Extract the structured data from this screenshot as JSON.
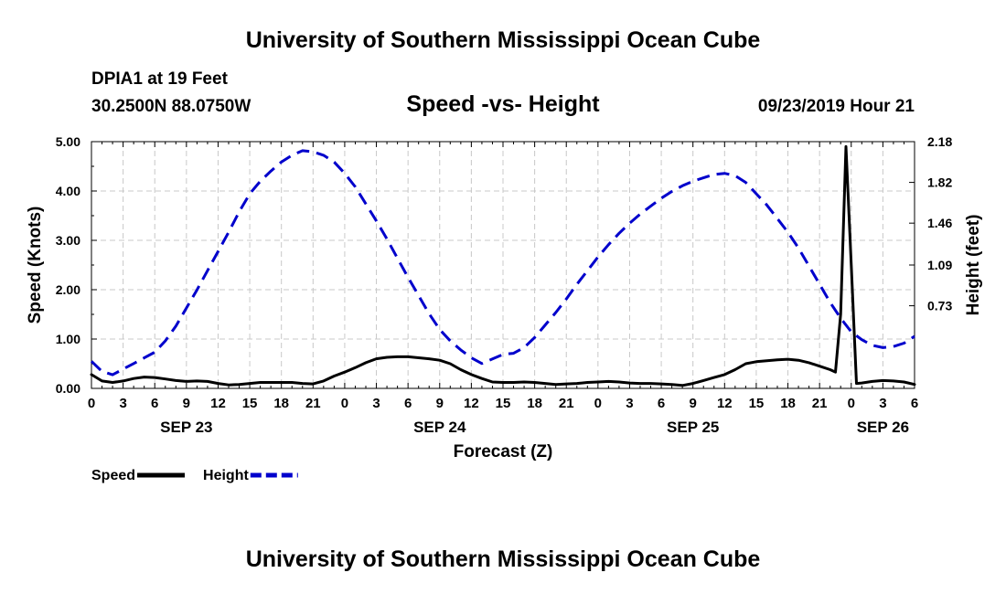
{
  "title": "University of Southern Mississippi Ocean Cube",
  "footer_title": "University of Southern Mississippi Ocean Cube",
  "station": "DPIA1 at 19 Feet",
  "coordinates": "30.2500N 88.0750W",
  "subtitle": "Speed -vs- Height",
  "datetime": "09/23/2019 Hour 21",
  "chart_data": {
    "type": "line",
    "title": "Speed -vs- Height",
    "xlabel": "Forecast (Z)",
    "ylabel": "Speed (Knots)",
    "y2label": "Height (feet)",
    "ylim": [
      0,
      5
    ],
    "y2lim": [
      0,
      2.18
    ],
    "grid": true,
    "x_hours": [
      0,
      78
    ],
    "x_tick_labels": [
      "0",
      "3",
      "6",
      "9",
      "12",
      "15",
      "18",
      "21",
      "0",
      "3",
      "6",
      "9",
      "12",
      "15",
      "18",
      "21",
      "0",
      "3",
      "6",
      "9",
      "12",
      "15",
      "18",
      "21",
      "0",
      "3",
      "6"
    ],
    "date_labels": [
      {
        "label": "SEP 23",
        "hour": 9
      },
      {
        "label": "SEP 24",
        "hour": 33
      },
      {
        "label": "SEP 25",
        "hour": 57
      },
      {
        "label": "SEP 26",
        "hour": 75
      }
    ],
    "y_tick_labels": [
      "0.00",
      "1.00",
      "2.00",
      "3.00",
      "4.00",
      "5.00"
    ],
    "y2_tick_labels": [
      "0.73",
      "1.09",
      "1.46",
      "1.82",
      "2.18"
    ],
    "legend_position": "bottom-left",
    "series": [
      {
        "name": "Speed",
        "axis": "left",
        "color": "#000000",
        "dash": "solid",
        "x": [
          0,
          1,
          2,
          3,
          4,
          5,
          6,
          7,
          8,
          9,
          10,
          11,
          12,
          13,
          14,
          15,
          16,
          17,
          18,
          19,
          20,
          21,
          22,
          23,
          24,
          25,
          26,
          27,
          28,
          29,
          30,
          31,
          32,
          33,
          34,
          35,
          36,
          37,
          38,
          39,
          40,
          41,
          42,
          43,
          44,
          45,
          46,
          47,
          48,
          49,
          50,
          51,
          52,
          53,
          54,
          55,
          56,
          57,
          58,
          59,
          60,
          61,
          62,
          63,
          64,
          65,
          66,
          67,
          68,
          69,
          70,
          70.5,
          71,
          71.5,
          72,
          72.5,
          73,
          74,
          75,
          76,
          77,
          78
        ],
        "values": [
          0.28,
          0.15,
          0.12,
          0.15,
          0.2,
          0.23,
          0.22,
          0.19,
          0.16,
          0.14,
          0.15,
          0.14,
          0.1,
          0.07,
          0.08,
          0.1,
          0.12,
          0.12,
          0.12,
          0.12,
          0.1,
          0.09,
          0.15,
          0.25,
          0.33,
          0.42,
          0.52,
          0.6,
          0.63,
          0.64,
          0.64,
          0.62,
          0.6,
          0.57,
          0.5,
          0.38,
          0.28,
          0.2,
          0.13,
          0.12,
          0.12,
          0.13,
          0.12,
          0.1,
          0.08,
          0.09,
          0.1,
          0.12,
          0.13,
          0.14,
          0.13,
          0.11,
          0.1,
          0.1,
          0.09,
          0.08,
          0.06,
          0.1,
          0.16,
          0.22,
          0.28,
          0.38,
          0.5,
          0.54,
          0.56,
          0.58,
          0.59,
          0.57,
          0.52,
          0.45,
          0.38,
          0.33,
          1.5,
          4.9,
          2.5,
          0.1,
          0.11,
          0.14,
          0.16,
          0.15,
          0.13,
          0.08
        ]
      },
      {
        "name": "Height",
        "axis": "right",
        "color": "#0000cc",
        "dash": "dashed",
        "x": [
          0,
          1,
          2,
          3,
          4,
          5,
          6,
          7,
          8,
          9,
          10,
          11,
          12,
          13,
          14,
          15,
          16,
          17,
          18,
          19,
          20,
          21,
          22,
          23,
          24,
          25,
          26,
          27,
          28,
          29,
          30,
          31,
          32,
          33,
          34,
          35,
          36,
          37,
          38,
          39,
          40,
          41,
          42,
          43,
          44,
          45,
          46,
          47,
          48,
          49,
          50,
          51,
          52,
          53,
          54,
          55,
          56,
          57,
          58,
          59,
          60,
          61,
          62,
          63,
          64,
          65,
          66,
          67,
          68,
          69,
          70,
          71,
          72,
          73,
          74,
          75,
          76,
          77,
          78
        ],
        "values": [
          0.24,
          0.15,
          0.12,
          0.17,
          0.22,
          0.27,
          0.32,
          0.42,
          0.55,
          0.71,
          0.87,
          1.04,
          1.21,
          1.38,
          1.56,
          1.72,
          1.83,
          1.92,
          2.0,
          2.06,
          2.1,
          2.09,
          2.06,
          2.0,
          1.9,
          1.78,
          1.63,
          1.48,
          1.32,
          1.15,
          0.98,
          0.82,
          0.66,
          0.52,
          0.42,
          0.34,
          0.27,
          0.22,
          0.26,
          0.3,
          0.31,
          0.36,
          0.45,
          0.56,
          0.67,
          0.79,
          0.92,
          1.04,
          1.16,
          1.27,
          1.37,
          1.46,
          1.54,
          1.61,
          1.68,
          1.74,
          1.79,
          1.83,
          1.86,
          1.89,
          1.9,
          1.88,
          1.82,
          1.72,
          1.62,
          1.5,
          1.38,
          1.24,
          1.08,
          0.92,
          0.76,
          0.62,
          0.5,
          0.43,
          0.38,
          0.36,
          0.37,
          0.4,
          0.46
        ]
      }
    ]
  },
  "legend": [
    {
      "label": "Speed",
      "color": "#000000",
      "dash": "solid"
    },
    {
      "label": "Height",
      "color": "#0000cc",
      "dash": "dashed"
    }
  ]
}
